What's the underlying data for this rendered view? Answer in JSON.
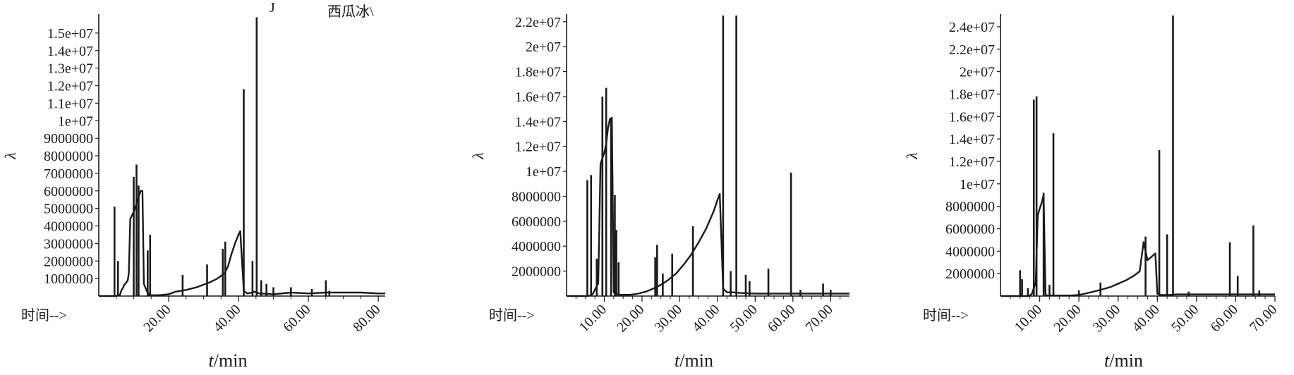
{
  "chart_data": [
    {
      "type": "line",
      "annotations": [
        "J",
        "西瓜冰\\"
      ],
      "ylabel": "λ",
      "xlabel_italic": "t",
      "xlabel_unit": "/min",
      "time_label": "时间-->",
      "xlim": [
        0,
        82
      ],
      "ylim": [
        0,
        16000000
      ],
      "x_ticks": [
        20,
        40,
        60,
        80
      ],
      "x_tick_labels": [
        "20.00",
        "40.00",
        "60.00",
        "80.00"
      ],
      "y_ticks": [
        1000000,
        2000000,
        3000000,
        4000000,
        5000000,
        6000000,
        7000000,
        8000000,
        9000000,
        10000000,
        11000000,
        12000000,
        13000000,
        14000000,
        15000000
      ],
      "y_tick_labels": [
        "1000000",
        "2000000",
        "3000000",
        "4000000",
        "5000000",
        "6000000",
        "7000000",
        "8000000",
        "9000000",
        "1e+07",
        "1.1e+07",
        "1.2e+07",
        "1.3e+07",
        "1.4e+07",
        "1.5e+07"
      ],
      "x": [
        0,
        4.5,
        6.0,
        6.2,
        6.4,
        7.0,
        7.3,
        7.6,
        8.3,
        8.6,
        9.0,
        10.0,
        10.5,
        11.0,
        11.5,
        12.0,
        12.5,
        12.9,
        13.3,
        13.7,
        14.5,
        15.5,
        16.5,
        18,
        20,
        22,
        25,
        28,
        30,
        32,
        34,
        36,
        37,
        38,
        39,
        40.0,
        40.5,
        41.5,
        42.5,
        44.0,
        44.5,
        46.0,
        50,
        55,
        60,
        65,
        70,
        75,
        80,
        82
      ],
      "y": [
        0,
        0,
        50000,
        150000,
        300000,
        500000,
        650000,
        700000,
        900000,
        1300000,
        4400000,
        4800000,
        5100000,
        5400000,
        5700000,
        6000000,
        6000000,
        700000,
        500000,
        300000,
        50000,
        50000,
        50000,
        60000,
        100000,
        250000,
        350000,
        500000,
        650000,
        800000,
        1000000,
        1300000,
        1700000,
        2400000,
        3000000,
        3500000,
        3700000,
        300000,
        150000,
        200000,
        250000,
        150000,
        100000,
        200000,
        150000,
        200000,
        200000,
        200000,
        150000,
        150000
      ],
      "peaks": [
        {
          "x": 4.5,
          "y": 5100000
        },
        {
          "x": 5.5,
          "y": 2000000
        },
        {
          "x": 10.0,
          "y": 6800000
        },
        {
          "x": 10.8,
          "y": 7500000
        },
        {
          "x": 11.4,
          "y": 6300000
        },
        {
          "x": 14.0,
          "y": 2600000
        },
        {
          "x": 14.7,
          "y": 3500000
        },
        {
          "x": 24.0,
          "y": 1200000
        },
        {
          "x": 31.0,
          "y": 1800000
        },
        {
          "x": 35.5,
          "y": 2700000
        },
        {
          "x": 36.2,
          "y": 3100000
        },
        {
          "x": 41.5,
          "y": 11800000
        },
        {
          "x": 44.0,
          "y": 2000000
        },
        {
          "x": 45.2,
          "y": 15900000
        },
        {
          "x": 46.5,
          "y": 900000
        },
        {
          "x": 48.0,
          "y": 700000
        },
        {
          "x": 50.0,
          "y": 500000
        },
        {
          "x": 55.0,
          "y": 500000
        },
        {
          "x": 61.0,
          "y": 400000
        },
        {
          "x": 65.0,
          "y": 900000
        },
        {
          "x": 66.0,
          "y": 300000
        }
      ]
    },
    {
      "type": "line",
      "ylabel": "λ",
      "xlabel_italic": "t",
      "xlabel_unit": "/min",
      "time_label": "时间-->",
      "xlim": [
        0,
        75
      ],
      "ylim": [
        0,
        22500000
      ],
      "x_ticks": [
        10,
        20,
        30,
        40,
        50,
        60,
        70
      ],
      "x_tick_labels": [
        "10.00",
        "20.00",
        "30.00",
        "40.00",
        "50.00",
        "60.00",
        "70.00"
      ],
      "y_ticks": [
        2000000,
        4000000,
        6000000,
        8000000,
        10000000,
        12000000,
        14000000,
        16000000,
        18000000,
        20000000,
        22000000
      ],
      "y_tick_labels": [
        "2000000",
        "4000000",
        "6000000",
        "8000000",
        "1e+07",
        "1.2e+07",
        "1.4e+07",
        "1.6e+07",
        "1.8e+07",
        "2e+07",
        "2.2e+07"
      ],
      "x": [
        0,
        5.5,
        6.5,
        7.0,
        7.5,
        8.0,
        8.4,
        9.0,
        10.0,
        10.5,
        11.0,
        11.5,
        12.0,
        12.5,
        13.0,
        14.0,
        15.5,
        17,
        19,
        21,
        23,
        25,
        27,
        29,
        31,
        33,
        35,
        37,
        39,
        40.0,
        40.6,
        41.5,
        42.5,
        44.0,
        46.0,
        50,
        55,
        60,
        65,
        70,
        75
      ],
      "y": [
        0,
        0,
        50000,
        200000,
        500000,
        800000,
        1000000,
        10600000,
        11500000,
        12200000,
        13500000,
        14200000,
        14300000,
        300000,
        200000,
        100000,
        100000,
        100000,
        200000,
        350000,
        600000,
        900000,
        1300000,
        1800000,
        2500000,
        3300000,
        4300000,
        5400000,
        6800000,
        7700000,
        8200000,
        600000,
        300000,
        300000,
        250000,
        200000,
        200000,
        200000,
        200000,
        200000,
        200000
      ],
      "peaks": [
        {
          "x": 5.5,
          "y": 9300000
        },
        {
          "x": 6.5,
          "y": 9700000
        },
        {
          "x": 8.0,
          "y": 3000000
        },
        {
          "x": 9.5,
          "y": 16000000
        },
        {
          "x": 10.5,
          "y": 16700000
        },
        {
          "x": 11.8,
          "y": 14300000
        },
        {
          "x": 12.8,
          "y": 8100000
        },
        {
          "x": 13.2,
          "y": 5300000
        },
        {
          "x": 13.8,
          "y": 2700000
        },
        {
          "x": 23.5,
          "y": 3100000
        },
        {
          "x": 24.0,
          "y": 4100000
        },
        {
          "x": 25.5,
          "y": 1800000
        },
        {
          "x": 28.0,
          "y": 3400000
        },
        {
          "x": 33.5,
          "y": 5600000
        },
        {
          "x": 41.5,
          "y": 22500000
        },
        {
          "x": 43.5,
          "y": 2000000
        },
        {
          "x": 45.0,
          "y": 22500000
        },
        {
          "x": 47.5,
          "y": 1700000
        },
        {
          "x": 48.5,
          "y": 1200000
        },
        {
          "x": 53.5,
          "y": 2200000
        },
        {
          "x": 59.5,
          "y": 9900000
        },
        {
          "x": 62.0,
          "y": 500000
        },
        {
          "x": 68.0,
          "y": 1000000
        },
        {
          "x": 70.0,
          "y": 500000
        }
      ]
    },
    {
      "type": "line",
      "ylabel": "λ",
      "xlabel_italic": "t",
      "xlabel_unit": "/min",
      "time_label": "时间-->",
      "xlim": [
        0,
        70
      ],
      "ylim": [
        0,
        25000000
      ],
      "x_ticks": [
        10,
        20,
        30,
        40,
        50,
        60,
        70
      ],
      "x_tick_labels": [
        "10.00",
        "20.00",
        "30.00",
        "40.00",
        "50.00",
        "60.00",
        "70.00"
      ],
      "y_ticks": [
        2000000,
        4000000,
        6000000,
        8000000,
        10000000,
        12000000,
        14000000,
        16000000,
        18000000,
        20000000,
        22000000,
        24000000
      ],
      "y_tick_labels": [
        "2000000",
        "4000000",
        "6000000",
        "8000000",
        "1e+07",
        "1.2e+07",
        "1.4e+07",
        "1.6e+07",
        "1.8e+07",
        "2e+07",
        "2.2e+07",
        "2.4e+07"
      ],
      "x": [
        0,
        7.0,
        7.5,
        8.0,
        8.3,
        8.6,
        9.0,
        9.5,
        10.0,
        10.5,
        11.0,
        11.5,
        12.0,
        13.0,
        15,
        18,
        20,
        22,
        25,
        28,
        30,
        32,
        34,
        35.5,
        36.5,
        37.5,
        38.5,
        39.5,
        40.0,
        41.0,
        43.0,
        45.0,
        47,
        50,
        55,
        60,
        65,
        70
      ],
      "y": [
        0,
        0,
        50000,
        200000,
        500000,
        800000,
        1200000,
        7200000,
        7800000,
        8300000,
        9000000,
        100000,
        50000,
        50000,
        50000,
        50000,
        100000,
        250000,
        500000,
        800000,
        1100000,
        1400000,
        1800000,
        2200000,
        4800000,
        3200000,
        3500000,
        3800000,
        200000,
        100000,
        100000,
        150000,
        150000,
        150000,
        150000,
        150000,
        150000,
        150000
      ],
      "peaks": [
        {
          "x": 5.0,
          "y": 2300000
        },
        {
          "x": 5.5,
          "y": 1500000
        },
        {
          "x": 7.0,
          "y": 700000
        },
        {
          "x": 8.5,
          "y": 17500000
        },
        {
          "x": 9.2,
          "y": 17800000
        },
        {
          "x": 11.0,
          "y": 9200000
        },
        {
          "x": 12.5,
          "y": 1000000
        },
        {
          "x": 13.5,
          "y": 14500000
        },
        {
          "x": 20.0,
          "y": 500000
        },
        {
          "x": 25.5,
          "y": 1200000
        },
        {
          "x": 37.0,
          "y": 5300000
        },
        {
          "x": 40.5,
          "y": 13000000
        },
        {
          "x": 42.5,
          "y": 5500000
        },
        {
          "x": 44.0,
          "y": 25000000
        },
        {
          "x": 48.0,
          "y": 400000
        },
        {
          "x": 58.5,
          "y": 4800000
        },
        {
          "x": 60.5,
          "y": 1800000
        },
        {
          "x": 64.5,
          "y": 6300000
        },
        {
          "x": 66.0,
          "y": 500000
        }
      ]
    }
  ]
}
